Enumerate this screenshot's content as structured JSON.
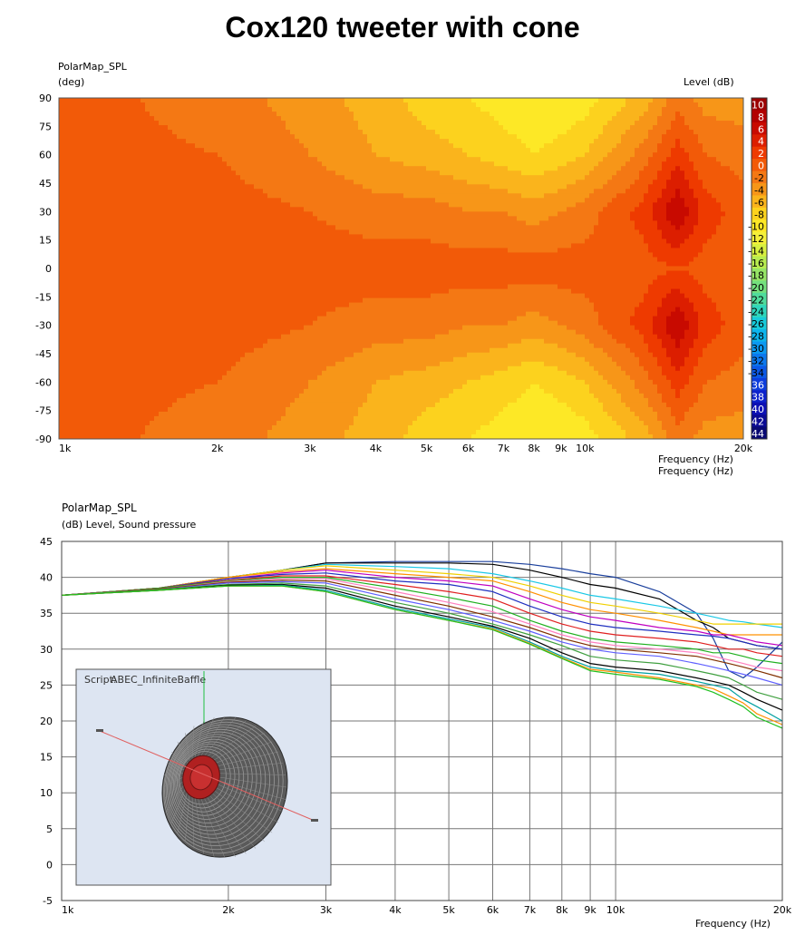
{
  "title": "Cox120 tweeter with cone",
  "chart_data": [
    {
      "type": "heatmap",
      "title": "PolarMap_SPL",
      "ylabel": "(deg)",
      "xlabel": "Frequency  (Hz)",
      "xlabel_repeat": "Frequency  (Hz)",
      "colorbar_label": "Level  (dB)",
      "x_scale": "log",
      "xlim": [
        1000,
        20000
      ],
      "ylim": [
        -90,
        90
      ],
      "x_ticks": [
        1000,
        2000,
        3000,
        4000,
        5000,
        6000,
        7000,
        8000,
        9000,
        10000,
        20000
      ],
      "x_tick_labels": [
        "1k",
        "2k",
        "3k",
        "4k",
        "5k",
        "6k",
        "7k",
        "8k",
        "9k",
        "10k",
        "20k"
      ],
      "y_ticks": [
        90,
        75,
        60,
        45,
        30,
        15,
        0,
        -15,
        -30,
        -45,
        -60,
        -75,
        -90
      ],
      "y_tick_labels": [
        "90",
        "75",
        "60",
        "45",
        "30",
        "15",
        "0",
        "-15",
        "-30",
        "-45",
        "-60",
        "-75",
        "-90"
      ],
      "levels": [
        10,
        8,
        6,
        4,
        2,
        0,
        -2,
        -4,
        -6,
        -8,
        -10,
        -12,
        -14,
        -16,
        -18,
        -20,
        -22,
        -24,
        -26,
        -28,
        -30,
        -32,
        -34,
        -36,
        -38,
        -40,
        -42,
        -44
      ],
      "level_colors": [
        "#9c0000",
        "#b20000",
        "#c80a00",
        "#dc1e00",
        "#ee3a00",
        "#f25a08",
        "#f47814",
        "#f79618",
        "#fab41c",
        "#fcd21e",
        "#fde826",
        "#f4f03a",
        "#d8f040",
        "#b8ec50",
        "#96e466",
        "#74e07e",
        "#50dc9c",
        "#30d6bc",
        "#18cada",
        "#0cb4ec",
        "#0c98f0",
        "#0c78ee",
        "#0c58e6",
        "#0c3cdc",
        "#0c22cc",
        "#0c10b4",
        "#0a0a94",
        "#080872"
      ],
      "z_grid": {
        "freq_hz": [
          1000,
          2000,
          3000,
          4000,
          5000,
          6000,
          7000,
          8000,
          9000,
          10000,
          13000,
          15000,
          17000,
          20000
        ],
        "angle_deg": [
          90,
          60,
          30,
          0,
          -30,
          -60,
          -90
        ],
        "level_db": [
          [
            0,
            -2,
            -4,
            -6,
            -8,
            -9,
            -10,
            -11,
            -11,
            -10,
            -6,
            -2,
            -4,
            -4
          ],
          [
            0,
            -1,
            -3,
            -5,
            -6,
            -7,
            -8,
            -9,
            -8,
            -7,
            -2,
            2,
            -1,
            -2
          ],
          [
            0,
            0,
            -1,
            -2,
            -2,
            -3,
            -3,
            -4,
            -3,
            -2,
            2,
            7,
            2,
            0
          ],
          [
            0,
            0,
            0,
            0,
            0,
            0,
            0,
            0,
            0,
            0,
            0,
            1,
            0,
            0
          ],
          [
            0,
            0,
            -1,
            -2,
            -2,
            -3,
            -3,
            -4,
            -3,
            -2,
            2,
            7,
            2,
            0
          ],
          [
            0,
            -1,
            -3,
            -5,
            -6,
            -7,
            -8,
            -9,
            -8,
            -7,
            -2,
            2,
            -1,
            -2
          ],
          [
            0,
            -2,
            -4,
            -6,
            -8,
            -9,
            -10,
            -11,
            -11,
            -10,
            -6,
            -2,
            -4,
            -4
          ]
        ]
      }
    },
    {
      "type": "line",
      "title": "PolarMap_SPL",
      "ylabel": "(dB)  Level, Sound pressure",
      "xlabel": "Frequency  (Hz)",
      "x_scale": "log",
      "xlim": [
        1000,
        20000
      ],
      "ylim": [
        -5,
        45
      ],
      "grid": true,
      "x_ticks": [
        1000,
        2000,
        3000,
        4000,
        5000,
        6000,
        7000,
        8000,
        9000,
        10000,
        20000
      ],
      "x_tick_labels": [
        "1k",
        "2k",
        "3k",
        "4k",
        "5k",
        "6k",
        "7k",
        "8k",
        "9k",
        "10k",
        "20k"
      ],
      "y_ticks": [
        45,
        40,
        35,
        30,
        25,
        20,
        15,
        10,
        5,
        0,
        -5
      ],
      "y_tick_labels": [
        "45",
        "40",
        "35",
        "30",
        "25",
        "20",
        "15",
        "10",
        "5",
        "0",
        "-5"
      ],
      "x": [
        1000,
        1500,
        2000,
        2500,
        3000,
        4000,
        5000,
        6000,
        7000,
        8000,
        9000,
        10000,
        12000,
        14000,
        15000,
        16000,
        17000,
        18000,
        20000
      ],
      "series": [
        {
          "color": "#1a3f9c",
          "values": [
            37.5,
            38.5,
            40.0,
            41.0,
            42.0,
            42.2,
            42.2,
            42.2,
            41.8,
            41.2,
            40.5,
            40.0,
            38.0,
            35.0,
            31.5,
            27.0,
            26.0,
            27.5,
            31.0
          ]
        },
        {
          "color": "#000000",
          "values": [
            37.5,
            38.5,
            40.0,
            41.0,
            42.0,
            42.0,
            42.0,
            41.8,
            41.0,
            40.0,
            39.0,
            38.5,
            37.0,
            34.0,
            33.0,
            31.5,
            31.0,
            30.5,
            30.0
          ]
        },
        {
          "color": "#1ac8e6",
          "values": [
            37.5,
            38.5,
            40.0,
            41.0,
            41.8,
            41.5,
            41.2,
            40.5,
            39.5,
            38.5,
            37.5,
            37.0,
            36.0,
            35.0,
            34.5,
            34.0,
            33.8,
            33.5,
            33.0
          ]
        },
        {
          "color": "#f0d000",
          "values": [
            37.5,
            38.5,
            40.0,
            41.0,
            41.6,
            41.0,
            40.5,
            40.0,
            38.8,
            37.5,
            36.5,
            36.0,
            35.0,
            34.0,
            33.5,
            33.5,
            33.5,
            33.5,
            33.5
          ]
        },
        {
          "color": "#ff9000",
          "values": [
            37.5,
            38.5,
            40.0,
            40.8,
            41.2,
            40.5,
            40.0,
            39.5,
            38.0,
            36.5,
            35.5,
            35.0,
            34.0,
            33.0,
            32.5,
            32.0,
            32.0,
            32.0,
            32.0
          ]
        },
        {
          "color": "#c000c0",
          "values": [
            37.5,
            38.5,
            39.8,
            40.6,
            41.0,
            40.0,
            39.5,
            38.8,
            37.0,
            35.5,
            34.5,
            34.0,
            33.0,
            32.5,
            32.0,
            32.0,
            31.5,
            31.0,
            30.5
          ]
        },
        {
          "color": "#2030c0",
          "values": [
            37.5,
            38.5,
            39.8,
            40.4,
            40.6,
            39.5,
            39.0,
            38.0,
            36.0,
            34.5,
            33.5,
            33.0,
            32.5,
            32.0,
            31.8,
            31.5,
            31.0,
            30.5,
            30.0
          ]
        },
        {
          "color": "#e02020",
          "values": [
            37.5,
            38.5,
            39.6,
            40.2,
            40.2,
            39.0,
            38.0,
            37.0,
            35.0,
            33.5,
            32.5,
            32.0,
            31.5,
            31.0,
            30.5,
            30.0,
            30.0,
            29.5,
            29.0
          ]
        },
        {
          "color": "#20b020",
          "values": [
            37.5,
            38.5,
            39.5,
            40.0,
            40.0,
            38.5,
            37.2,
            36.0,
            34.0,
            32.5,
            31.5,
            31.0,
            30.5,
            30.0,
            29.5,
            29.5,
            29.0,
            28.5,
            28.0
          ]
        },
        {
          "color": "#ff80c0",
          "values": [
            37.5,
            38.4,
            39.4,
            39.8,
            39.8,
            38.0,
            36.5,
            35.2,
            33.5,
            32.0,
            31.0,
            30.5,
            30.0,
            29.5,
            29.0,
            28.5,
            28.0,
            27.5,
            27.0
          ]
        },
        {
          "color": "#803000",
          "values": [
            37.5,
            38.4,
            39.3,
            39.6,
            39.5,
            37.5,
            36.0,
            34.5,
            33.0,
            31.5,
            30.5,
            30.0,
            29.5,
            29.0,
            28.5,
            28.0,
            27.5,
            27.0,
            26.0
          ]
        },
        {
          "color": "#6060ff",
          "values": [
            37.5,
            38.3,
            39.2,
            39.4,
            39.2,
            37.0,
            35.5,
            34.0,
            32.5,
            31.0,
            30.0,
            29.5,
            29.0,
            28.0,
            27.5,
            27.0,
            26.5,
            26.0,
            25.0
          ]
        },
        {
          "color": "#40a040",
          "values": [
            37.5,
            38.3,
            39.0,
            39.2,
            38.8,
            36.5,
            35.0,
            33.5,
            32.0,
            30.5,
            29.0,
            28.5,
            28.0,
            27.0,
            26.5,
            26.0,
            25.0,
            24.0,
            23.0
          ]
        },
        {
          "color": "#000000",
          "values": [
            37.5,
            38.2,
            38.9,
            39.0,
            38.5,
            36.0,
            34.5,
            33.2,
            31.5,
            29.5,
            28.0,
            27.5,
            27.0,
            26.0,
            25.5,
            25.0,
            24.0,
            23.0,
            21.5
          ]
        },
        {
          "color": "#00a0a0",
          "values": [
            37.5,
            38.2,
            38.8,
            38.9,
            38.2,
            35.7,
            34.2,
            33.0,
            31.0,
            29.0,
            27.5,
            27.0,
            26.5,
            25.5,
            25.0,
            24.5,
            23.0,
            22.0,
            20.0
          ]
        },
        {
          "color": "#ff9000",
          "values": [
            37.5,
            38.2,
            38.8,
            38.8,
            38.0,
            35.5,
            34.0,
            32.8,
            30.8,
            28.8,
            27.2,
            26.8,
            26.0,
            25.0,
            24.5,
            23.5,
            22.5,
            21.0,
            19.5
          ]
        },
        {
          "color": "#20c020",
          "values": [
            37.5,
            38.2,
            38.8,
            38.8,
            38.0,
            35.5,
            34.0,
            32.7,
            30.7,
            28.7,
            27.0,
            26.5,
            25.8,
            24.8,
            24.0,
            23.0,
            22.0,
            20.5,
            19.0
          ]
        }
      ]
    }
  ],
  "inset": {
    "script_label": "Script:",
    "script_value": "ABEC_InfiniteBaffle"
  }
}
